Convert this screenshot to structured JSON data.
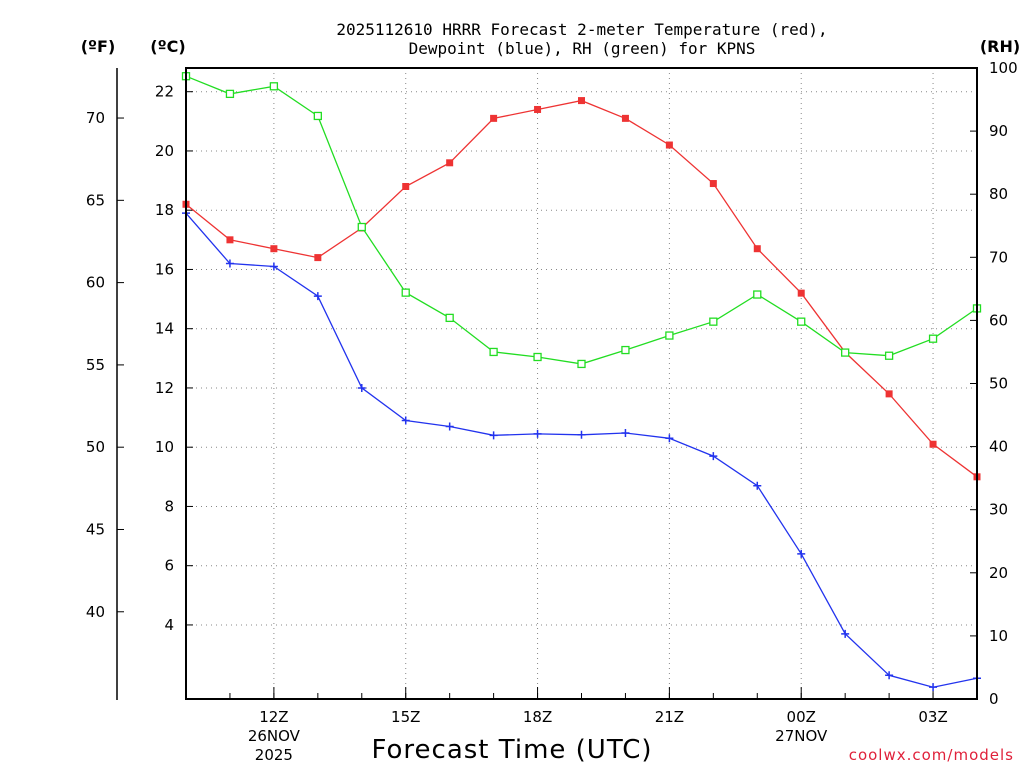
{
  "chart_data": {
    "type": "line",
    "title_line1": "2025112610 HRRR Forecast 2-meter Temperature (red),",
    "title_line2": "Dewpoint (blue), RH (green) for KPNS",
    "xlabel": "Forecast Time (UTC)",
    "credit": "coolwx.com/models",
    "unit_f": "(ºF)",
    "unit_c": "(ºC)",
    "unit_rh": "(RH)",
    "x_hours_utc": [
      10,
      11,
      12,
      13,
      14,
      15,
      16,
      17,
      18,
      19,
      20,
      21,
      22,
      23,
      0,
      1,
      2,
      3,
      4
    ],
    "x_ticks": [
      {
        "index": 2,
        "label": "12Z",
        "date": "26NOV",
        "year": "2025"
      },
      {
        "index": 5,
        "label": "15Z",
        "date": "",
        "year": ""
      },
      {
        "index": 8,
        "label": "18Z",
        "date": "",
        "year": ""
      },
      {
        "index": 11,
        "label": "21Z",
        "date": "",
        "year": ""
      },
      {
        "index": 14,
        "label": "00Z",
        "date": "27NOV",
        "year": ""
      },
      {
        "index": 17,
        "label": "03Z",
        "date": "",
        "year": ""
      }
    ],
    "y_celsius": {
      "range": [
        1.5,
        22.8
      ],
      "ticks": [
        "4",
        "6",
        "8",
        "10",
        "12",
        "14",
        "16",
        "18",
        "20",
        "22"
      ]
    },
    "y_fahrenheit": {
      "ticks": [
        "40",
        "45",
        "50",
        "55",
        "60",
        "65",
        "70"
      ]
    },
    "y_rh": {
      "range": [
        0,
        100
      ],
      "ticks": [
        "0",
        "10",
        "20",
        "30",
        "40",
        "50",
        "60",
        "70",
        "80",
        "90",
        "100"
      ]
    },
    "grid": true,
    "series": [
      {
        "name": "2-meter Temperature",
        "color": "#ee3333",
        "axis": "celsius",
        "marker": "filled-square",
        "values": [
          18.2,
          17.0,
          16.7,
          16.4,
          17.4,
          18.8,
          19.6,
          21.1,
          21.4,
          21.7,
          21.1,
          20.2,
          18.9,
          16.7,
          15.2,
          13.2,
          11.8,
          10.1,
          9.0
        ]
      },
      {
        "name": "Dewpoint",
        "color": "#2233ee",
        "axis": "celsius",
        "marker": "plus",
        "values": [
          17.9,
          16.2,
          16.1,
          15.1,
          12.0,
          10.9,
          10.7,
          10.4,
          10.45,
          10.42,
          10.48,
          10.3,
          9.7,
          8.7,
          6.4,
          3.7,
          2.3,
          1.9,
          2.2
        ]
      },
      {
        "name": "RH",
        "color": "#22dd22",
        "axis": "rh",
        "marker": "open-square",
        "values": [
          98.7,
          95.9,
          97.1,
          92.4,
          74.8,
          64.4,
          60.4,
          55.0,
          54.2,
          53.1,
          55.3,
          57.6,
          59.8,
          64.1,
          59.8,
          54.9,
          54.4,
          57.1,
          61.9
        ]
      }
    ]
  }
}
